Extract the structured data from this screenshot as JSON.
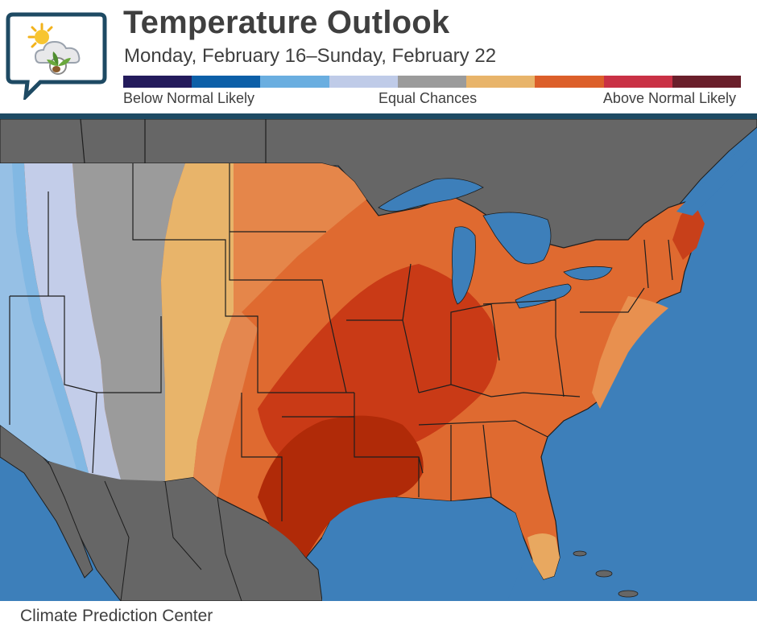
{
  "header": {
    "title": "Temperature Outlook",
    "subtitle": "Monday, February 16–Sunday, February 22"
  },
  "legend": {
    "colors": [
      "#241b5c",
      "#0c5fa8",
      "#6aaee0",
      "#bfcbe8",
      "#9b9b9b",
      "#e8b46a",
      "#dc5f2a",
      "#c93145",
      "#6a1f2b"
    ],
    "label_below": "Below Normal Likely",
    "label_equal": "Equal Chances",
    "label_above": "Above Normal Likely"
  },
  "map": {
    "ocean_color": "#3d7fba",
    "land_color": "#666666",
    "border_color": "#1e1e1e",
    "lake_color": "#3d7fba"
  },
  "footer": {
    "credit": "Climate Prediction Center"
  }
}
